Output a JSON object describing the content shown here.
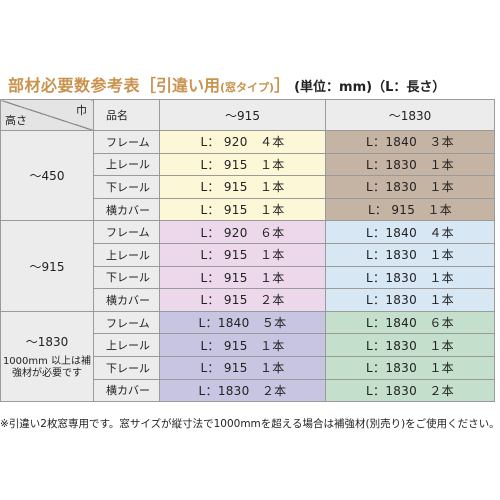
{
  "title": {
    "main": "部材必要数参考表",
    "bracket": "［引違い用",
    "sub": "(窓タイプ)",
    "bracket_close": "］",
    "unit": "(単位：mm)（L：長さ）"
  },
  "header": {
    "width_label": "巾",
    "height_label": "高さ",
    "part_label": "品名",
    "col1": "～915",
    "col2": "～1830"
  },
  "groups": [
    {
      "height": "～450",
      "note": "",
      "rows": [
        {
          "part": "フレーム",
          "v1": "L： 920　４本",
          "v2": "L：1840　３本"
        },
        {
          "part": "上レール",
          "v1": "L： 915　１本",
          "v2": "L：1830　１本"
        },
        {
          "part": "下レール",
          "v1": "L： 915　１本",
          "v2": "L：1830　１本"
        },
        {
          "part": "横カバー",
          "v1": "L： 915　１本",
          "v2": "L： 915　１本"
        }
      ]
    },
    {
      "height": "～915",
      "note": "",
      "rows": [
        {
          "part": "フレーム",
          "v1": "L： 920　６本",
          "v2": "L：1840　４本"
        },
        {
          "part": "上レール",
          "v1": "L： 915　１本",
          "v2": "L：1830　１本"
        },
        {
          "part": "下レール",
          "v1": "L： 915　１本",
          "v2": "L：1830　１本"
        },
        {
          "part": "横カバー",
          "v1": "L： 915　２本",
          "v2": "L：1830　１本"
        }
      ]
    },
    {
      "height": "～1830",
      "note": "1000mm 以上は補強材が必要です",
      "rows": [
        {
          "part": "フレーム",
          "v1": "L：1840　５本",
          "v2": "L：1840　６本"
        },
        {
          "part": "上レール",
          "v1": "L： 915　１本",
          "v2": "L：1830　１本"
        },
        {
          "part": "下レール",
          "v1": "L： 915　１本",
          "v2": "L：1830　１本"
        },
        {
          "part": "横カバー",
          "v1": "L：1830　２本",
          "v2": "L：1830　２本"
        }
      ]
    }
  ],
  "footnote": "※引違い2枚窓専用です。窓サイズが縦寸法で1000mmを超える場合は補強材(別売り)をご使用ください。"
}
